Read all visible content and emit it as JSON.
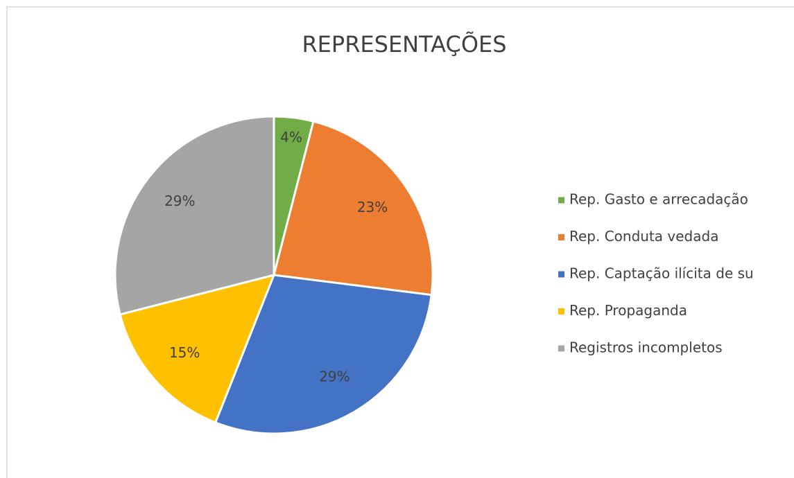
{
  "chart_data": {
    "type": "pie",
    "title": "REPRESENTAÇÕES",
    "categories": [
      "Rep. Gasto e arrecadação",
      "Rep. Conduta vedada",
      "Rep. Captação ilícita de su",
      "Rep. Propaganda",
      "Registros incompletos"
    ],
    "values": [
      4,
      23,
      29,
      15,
      29
    ],
    "value_labels": [
      "4%",
      "23%",
      "29%",
      "15%",
      "29%"
    ],
    "colors": [
      "#70ad47",
      "#ed7d31",
      "#4472c4",
      "#ffc000",
      "#a5a5a5"
    ],
    "legend": "right"
  }
}
